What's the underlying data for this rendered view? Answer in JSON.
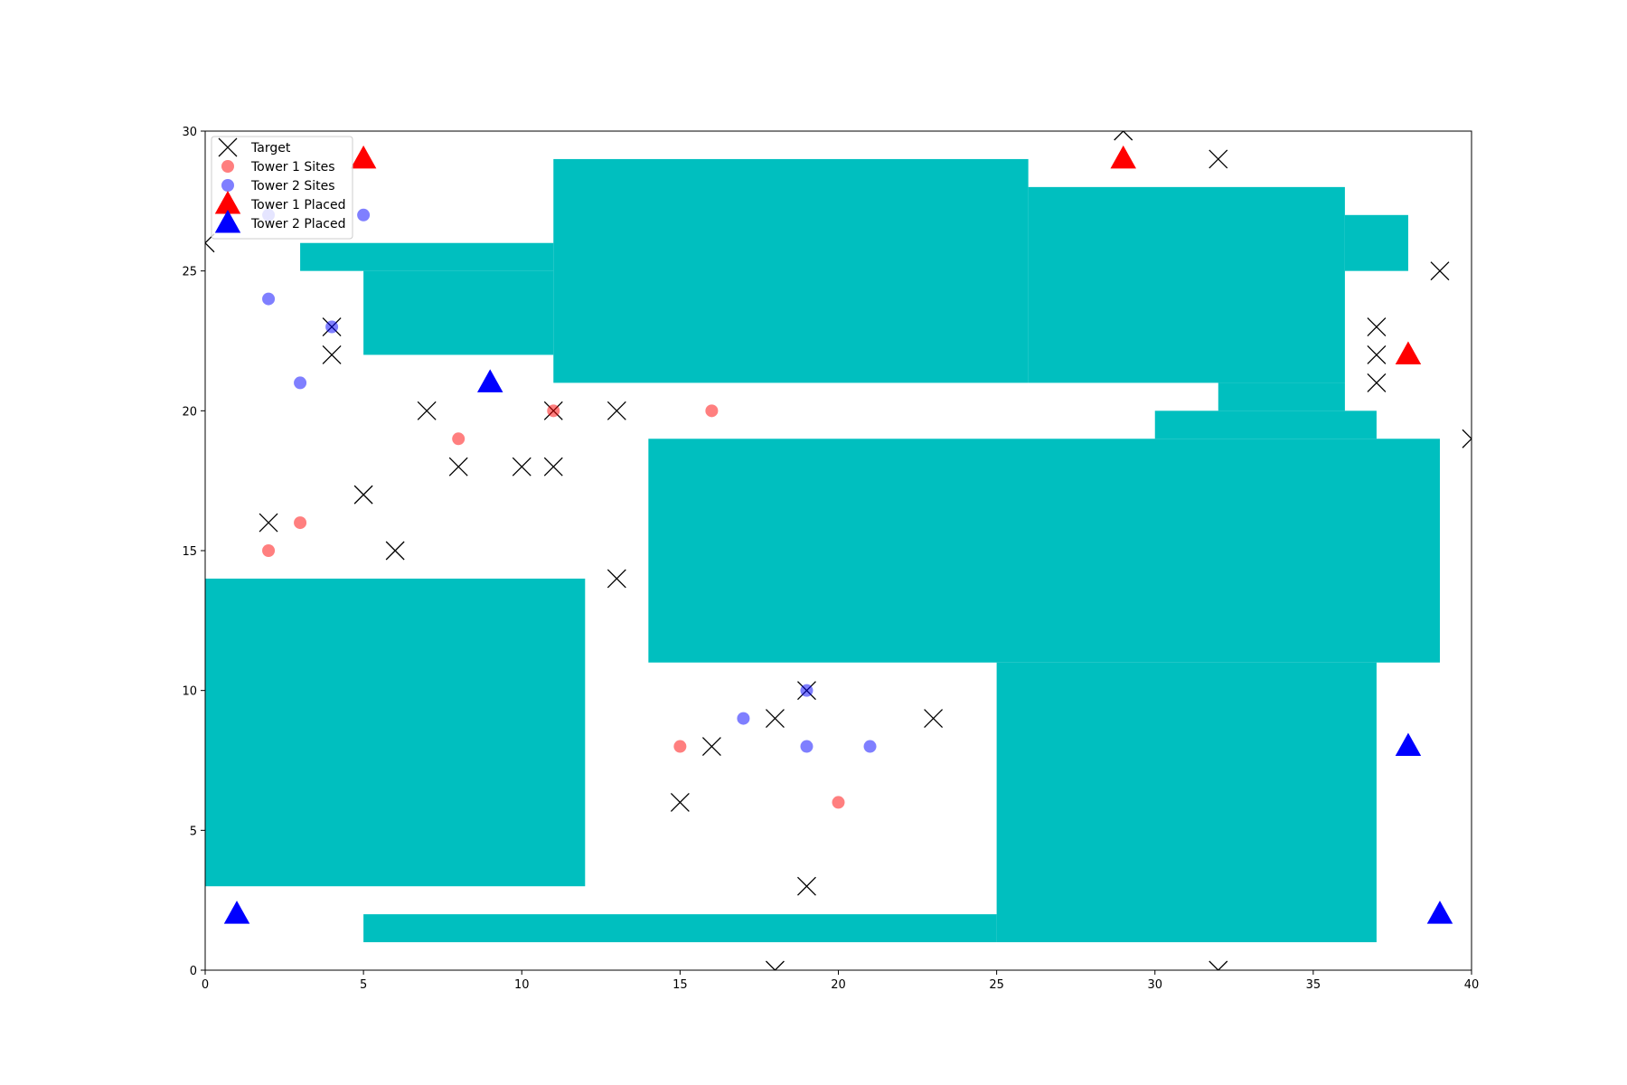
{
  "chart_data": {
    "type": "scatter",
    "xlim": [
      0,
      40
    ],
    "ylim": [
      0,
      30
    ],
    "xticks": [
      0,
      5,
      10,
      15,
      20,
      25,
      30,
      35,
      40
    ],
    "yticks": [
      0,
      5,
      10,
      15,
      20,
      25,
      30
    ],
    "grid": false,
    "legend_position": "top-left",
    "obstacle_color": "#00bfbf",
    "obstacles": [
      {
        "x0": 11,
        "x1": 26,
        "y0": 21,
        "y1": 29
      },
      {
        "x0": 26,
        "x1": 36,
        "y0": 21,
        "y1": 28
      },
      {
        "x0": 36,
        "x1": 38,
        "y0": 25,
        "y1": 27
      },
      {
        "x0": 3,
        "x1": 11,
        "y0": 25,
        "y1": 26
      },
      {
        "x0": 5,
        "x1": 11,
        "y0": 22,
        "y1": 25
      },
      {
        "x0": 32,
        "x1": 36,
        "y0": 20,
        "y1": 21
      },
      {
        "x0": 30,
        "x1": 37,
        "y0": 19,
        "y1": 20
      },
      {
        "x0": 14,
        "x1": 39,
        "y0": 11,
        "y1": 19
      },
      {
        "x0": 25,
        "x1": 37,
        "y0": 1,
        "y1": 11
      },
      {
        "x0": 0,
        "x1": 12,
        "y0": 3,
        "y1": 14
      },
      {
        "x0": 5,
        "x1": 25,
        "y0": 1,
        "y1": 2
      }
    ],
    "series": [
      {
        "name": "Target",
        "marker": "x",
        "color": "#000000",
        "points": [
          [
            29,
            30
          ],
          [
            32,
            29
          ],
          [
            39,
            25
          ],
          [
            37,
            23
          ],
          [
            37,
            22
          ],
          [
            37,
            21
          ],
          [
            40,
            19
          ],
          [
            0,
            26
          ],
          [
            4,
            23
          ],
          [
            4,
            22
          ],
          [
            7,
            20
          ],
          [
            11,
            20
          ],
          [
            13,
            20
          ],
          [
            8,
            18
          ],
          [
            10,
            18
          ],
          [
            11,
            18
          ],
          [
            5,
            17
          ],
          [
            2,
            16
          ],
          [
            6,
            15
          ],
          [
            13,
            14
          ],
          [
            19,
            10
          ],
          [
            18,
            9
          ],
          [
            23,
            9
          ],
          [
            16,
            8
          ],
          [
            15,
            6
          ],
          [
            19,
            3
          ],
          [
            18,
            0
          ],
          [
            32,
            0
          ]
        ]
      },
      {
        "name": "Tower 1 Sites",
        "marker": "circle",
        "color": "#ff0000",
        "points": [
          [
            11,
            20
          ],
          [
            16,
            20
          ],
          [
            8,
            19
          ],
          [
            3,
            16
          ],
          [
            2,
            15
          ],
          [
            15,
            8
          ],
          [
            20,
            6
          ]
        ]
      },
      {
        "name": "Tower 2 Sites",
        "marker": "circle",
        "color": "#0000ff",
        "points": [
          [
            5,
            27
          ],
          [
            2,
            24
          ],
          [
            4,
            23
          ],
          [
            3,
            21
          ],
          [
            19,
            10
          ],
          [
            17,
            9
          ],
          [
            19,
            8
          ],
          [
            21,
            8
          ],
          [
            2,
            27
          ]
        ]
      },
      {
        "name": "Tower 1 Placed",
        "marker": "triangle",
        "color": "#ff0000",
        "points": [
          [
            5,
            29
          ],
          [
            29,
            29
          ],
          [
            38,
            22
          ]
        ]
      },
      {
        "name": "Tower 2 Placed",
        "marker": "triangle",
        "color": "#0000ff",
        "points": [
          [
            9,
            21
          ],
          [
            1,
            2
          ],
          [
            38,
            8
          ],
          [
            39,
            2
          ]
        ]
      }
    ]
  }
}
